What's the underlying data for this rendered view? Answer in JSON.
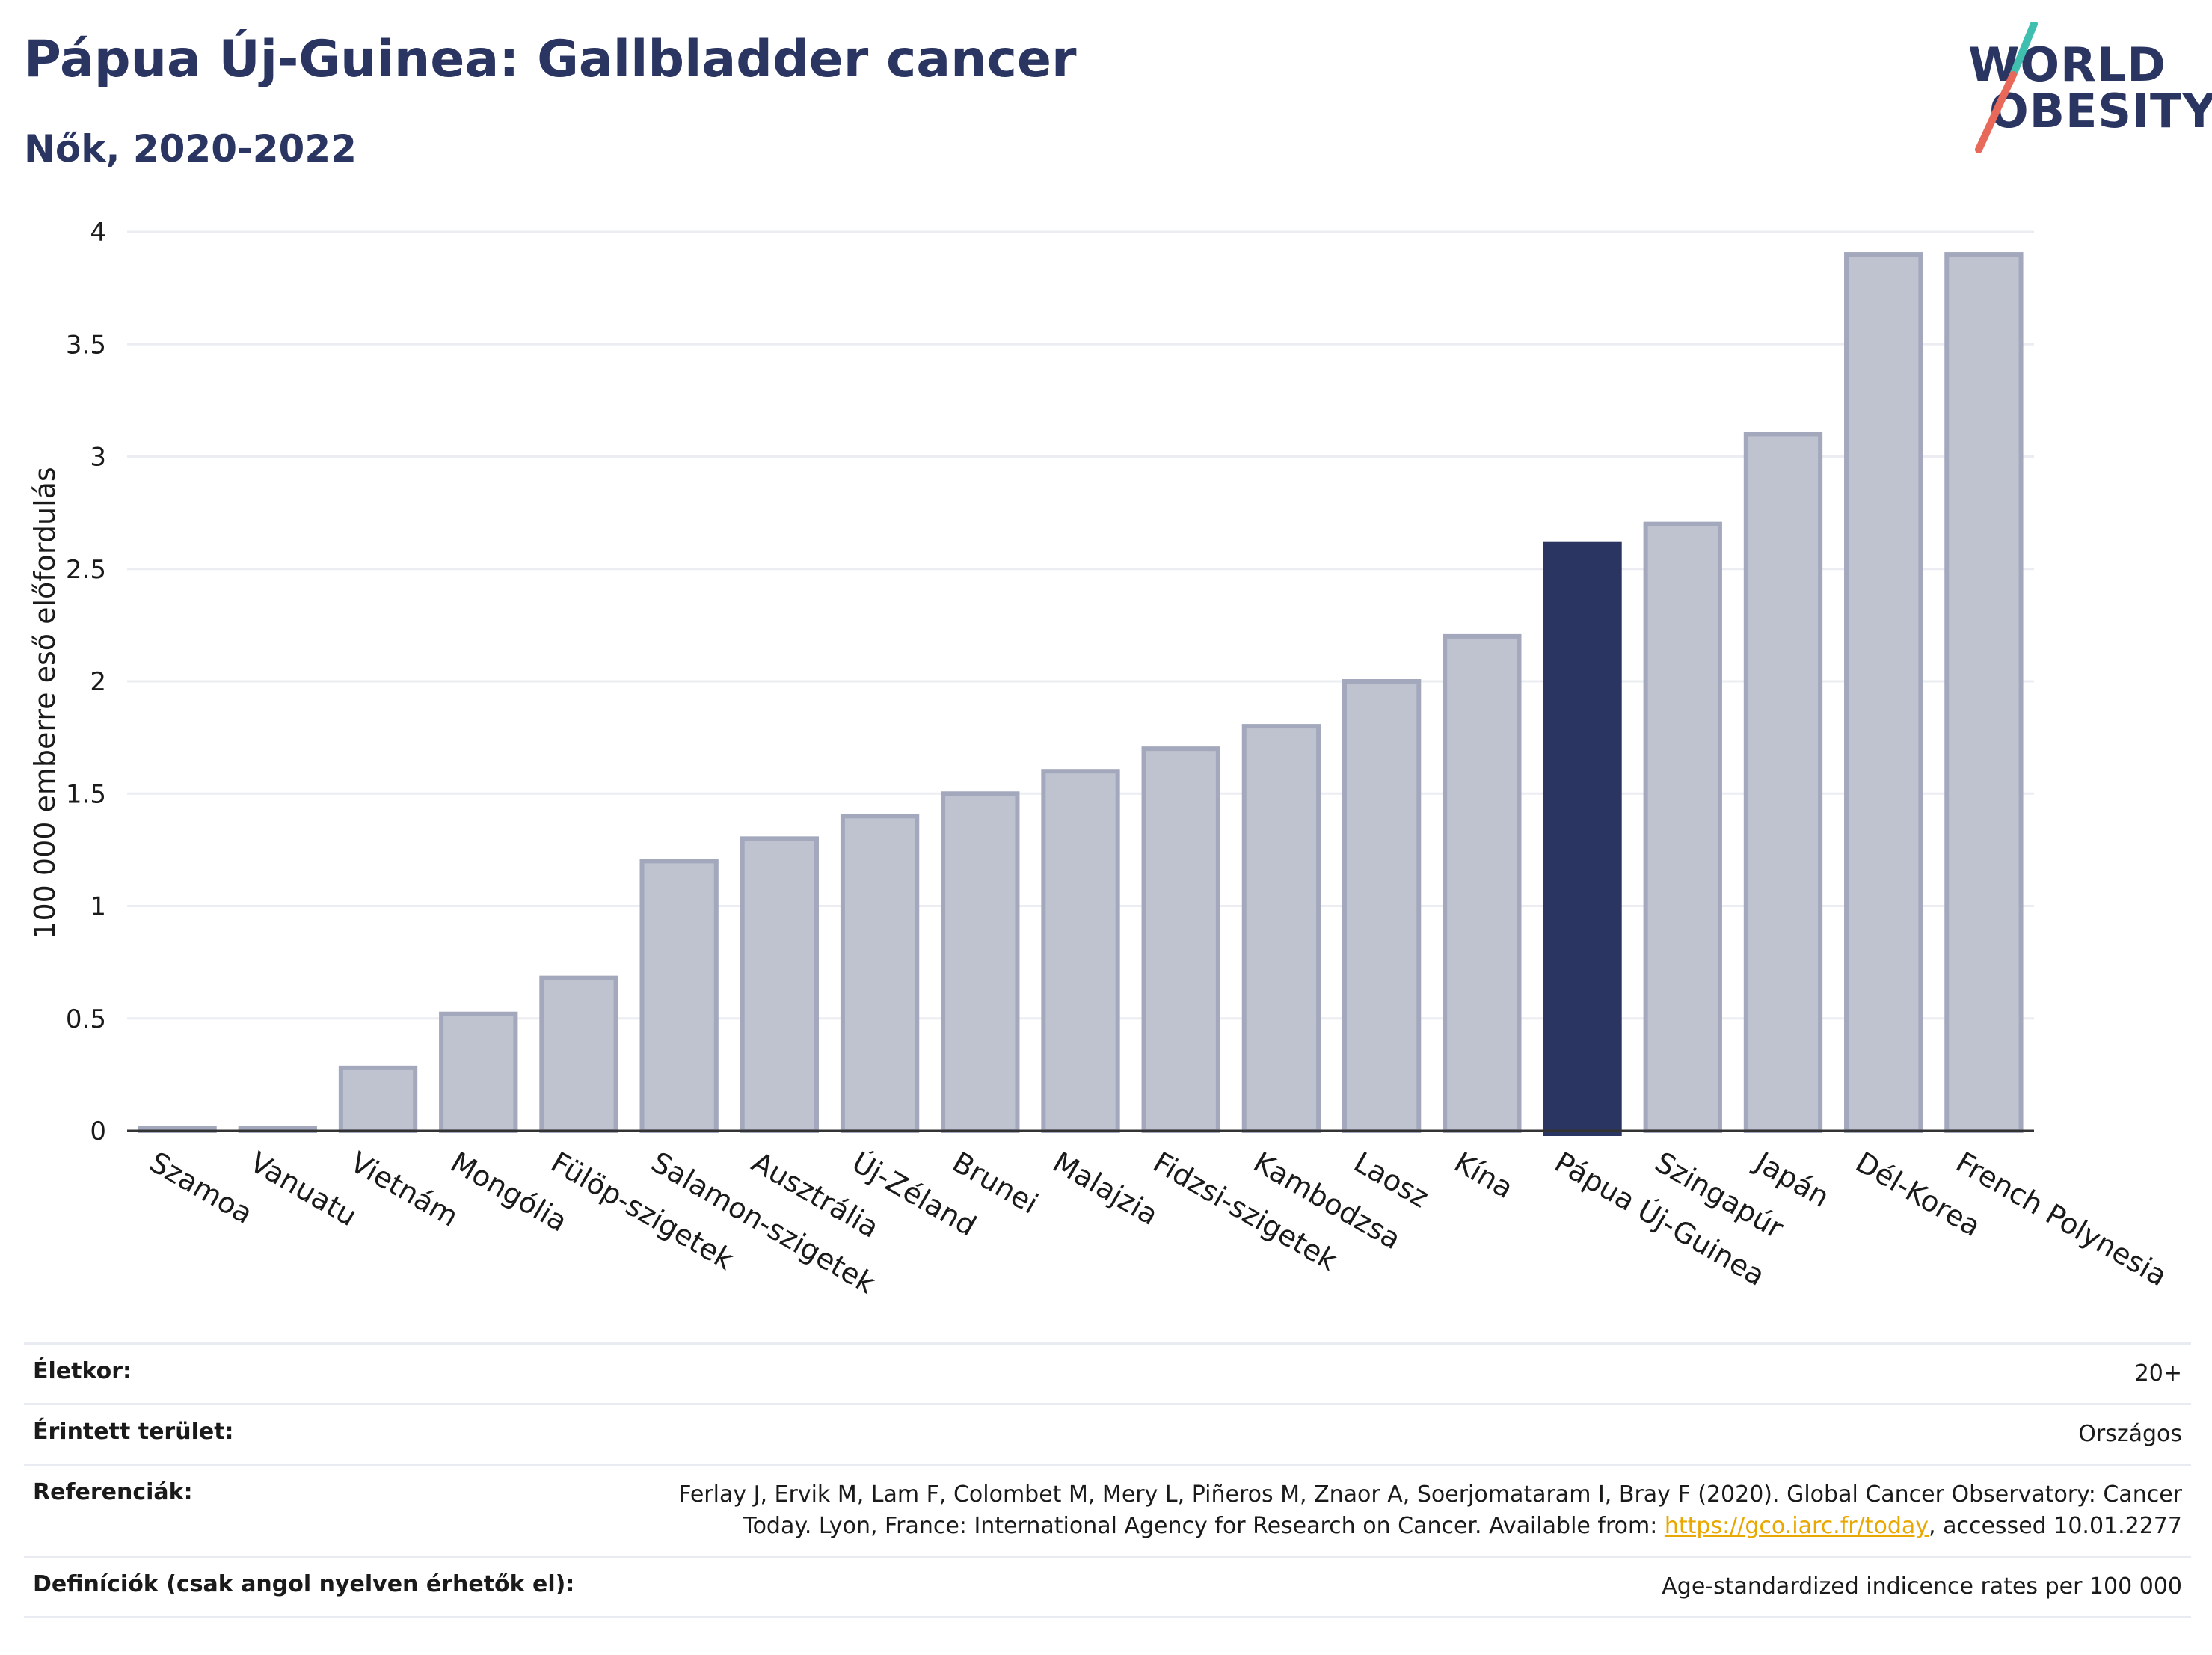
{
  "header": {
    "title": "Pápua Új-Guinea: Gallbladder cancer",
    "subtitle": "Nők, 2020-2022"
  },
  "logo": {
    "line1": "WORLD",
    "line2": "OBESITY",
    "colors": {
      "teal": "#3ebfb0",
      "coral": "#e8685a",
      "navy": "#2a3561"
    }
  },
  "chart_data": {
    "type": "bar",
    "ylabel": "100 000 emberre eső előfordulás",
    "xlabel": "",
    "ylim": [
      0,
      4
    ],
    "yticks": [
      0,
      0.5,
      1,
      1.5,
      2,
      2.5,
      3,
      3.5,
      4
    ],
    "ytick_labels": [
      "0",
      "0.5",
      "1",
      "1.5",
      "2",
      "2.5",
      "3",
      "3.5",
      "4"
    ],
    "grid": true,
    "categories": [
      "Szamoa",
      "Vanuatu",
      "Vietnám",
      "Mongólia",
      "Fülöp-szigetek",
      "Salamon-szigetek",
      "Ausztrália",
      "Új-Zéland",
      "Brunei",
      "Malajzia",
      "Fidzsi-szigetek",
      "Kambodzsa",
      "Laosz",
      "Kína",
      "Pápua Új-Guinea",
      "Szingapúr",
      "Japán",
      "Dél-Korea",
      "French Polynesia"
    ],
    "values": [
      0.01,
      0.01,
      0.28,
      0.52,
      0.68,
      1.2,
      1.3,
      1.4,
      1.5,
      1.6,
      1.7,
      1.8,
      2.0,
      2.2,
      2.61,
      2.7,
      3.1,
      3.9,
      3.9
    ],
    "highlight": "Pápua Új-Guinea",
    "colors": {
      "bar": "#bfc3cf",
      "bar_border": "#a3a8bd",
      "highlight": "#2a3561"
    }
  },
  "meta": {
    "age_label": "Életkor:",
    "age_value": "20+",
    "area_label": "Érintett terület:",
    "area_value": "Országos",
    "ref_label": "Referenciák:",
    "ref_text_1": "Ferlay J, Ervik M, Lam F, Colombet M, Mery L, Piñeros M, Znaor A, Soerjomataram I, Bray F (2020). Global Cancer Observatory: Cancer",
    "ref_text_2": "Today. Lyon, France: International Agency for Research on Cancer. Available from:",
    "ref_link": "https://gco.iarc.fr/today",
    "ref_text_3": ", accessed 10.01.2277",
    "def_label": "Definíciók (csak angol nyelven érhetők el):",
    "def_value": "Age-standardized indicence rates per 100 000"
  }
}
